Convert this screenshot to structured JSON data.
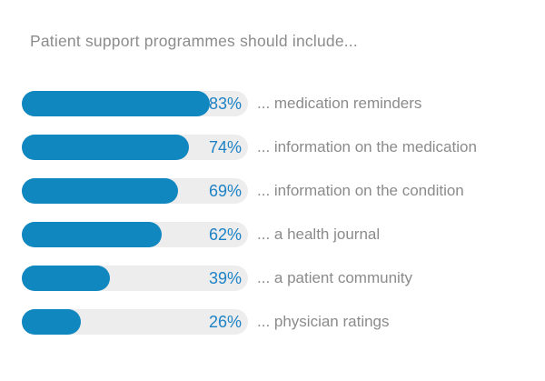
{
  "title": "Patient support programmes should include...",
  "colors": {
    "bar": "#1187c0",
    "track": "#ededed",
    "value_text": "#1d82c6",
    "label_text": "#8b8b8b",
    "title_text": "#8c8c8c",
    "background": "#ffffff"
  },
  "chart_data": {
    "type": "bar",
    "orientation": "horizontal",
    "title": "Patient support programmes should include...",
    "categories": [
      "... medication reminders",
      "... information on the medication",
      "... information on the condition",
      "... a health journal",
      "... a patient community",
      "... physician ratings"
    ],
    "values": [
      83,
      74,
      69,
      62,
      39,
      26
    ],
    "value_suffix": "%",
    "xlim": [
      0,
      100
    ],
    "grid": false,
    "legend": false,
    "data_labels": "inside-track-right"
  },
  "rows": [
    {
      "value": 83,
      "percent": "83%",
      "label": "... medication reminders"
    },
    {
      "value": 74,
      "percent": "74%",
      "label": "... information on the medication"
    },
    {
      "value": 69,
      "percent": "69%",
      "label": "... information on the condition"
    },
    {
      "value": 62,
      "percent": "62%",
      "label": "... a health journal"
    },
    {
      "value": 39,
      "percent": "39%",
      "label": "... a patient community"
    },
    {
      "value": 26,
      "percent": "26%",
      "label": "... physician ratings"
    }
  ]
}
